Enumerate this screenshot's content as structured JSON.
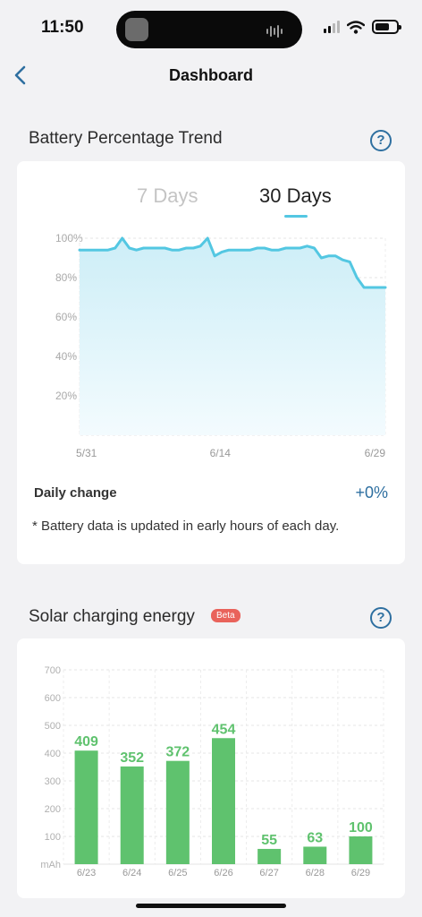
{
  "status_bar": {
    "time": "11:50"
  },
  "nav": {
    "title": "Dashboard"
  },
  "battery_section": {
    "title": "Battery Percentage Trend",
    "help": "?",
    "tabs": [
      {
        "label": "7 Days",
        "selected": false
      },
      {
        "label": "30 Days",
        "selected": true
      }
    ],
    "daily_change_label": "Daily change",
    "daily_change_value": "+0%",
    "note": "* Battery data is updated in early hours of each day."
  },
  "solar_section": {
    "title": "Solar charging energy",
    "badge": "Beta",
    "help": "?"
  },
  "colors": {
    "accent": "#53c7e2",
    "bar": "#5fc26e",
    "link": "#2e6fa0",
    "badge": "#e9635b"
  },
  "chart_data": [
    {
      "type": "area",
      "y_ticks": [
        "100%",
        "80%",
        "60%",
        "40%",
        "20%"
      ],
      "x_ticks": [
        "5/31",
        "6/14",
        "6/29"
      ],
      "ylim": [
        0,
        100
      ],
      "grid": true,
      "series": [
        {
          "values": [
            94,
            94,
            94,
            94,
            94,
            95,
            100,
            95,
            94,
            95,
            95,
            95,
            95,
            94,
            94,
            95,
            95,
            96,
            100,
            91,
            93,
            94,
            94,
            94,
            94,
            95,
            95,
            94,
            94,
            95,
            95,
            95,
            96,
            95,
            90,
            91,
            91,
            89,
            88,
            80,
            75,
            75,
            75,
            75
          ]
        }
      ]
    },
    {
      "type": "bar",
      "unit": "mAh",
      "y_ticks": [
        "700",
        "600",
        "500",
        "400",
        "300",
        "200",
        "100"
      ],
      "ylim": [
        0,
        700
      ],
      "grid": true,
      "categories": [
        "6/23",
        "6/24",
        "6/25",
        "6/26",
        "6/27",
        "6/28",
        "6/29"
      ],
      "values": [
        409,
        352,
        372,
        454,
        55,
        63,
        100
      ]
    }
  ]
}
